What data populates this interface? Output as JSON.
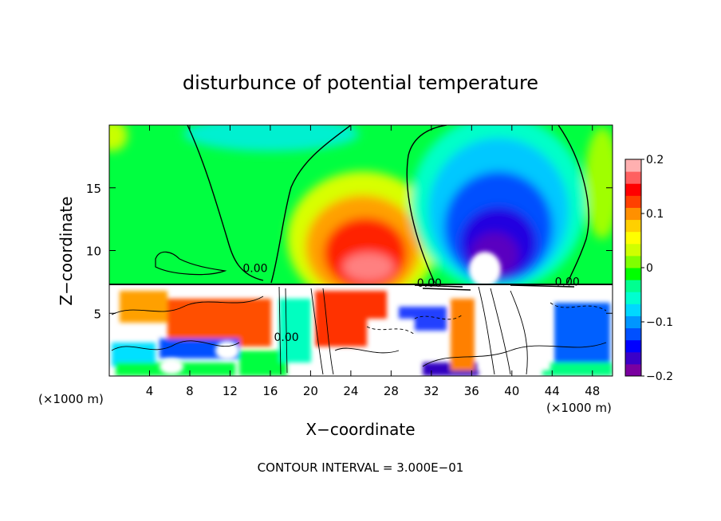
{
  "chart_data": {
    "type": "heatmap",
    "title": "disturbunce of potential temperature",
    "xlabel": "X−coordinate",
    "ylabel": "Z−coordinate",
    "x_unit_left": "(×1000 m)",
    "x_unit_right": "(×1000 m)",
    "x_ticks": [
      4,
      8,
      12,
      16,
      20,
      24,
      28,
      32,
      36,
      40,
      44,
      48
    ],
    "y_ticks": [
      5,
      10,
      15
    ],
    "xlim": [
      0,
      50
    ],
    "ylim": [
      0,
      20
    ],
    "grid": false,
    "colorbar": {
      "min": -0.2,
      "max": 0.2,
      "tick_values": [
        0.2,
        0.1,
        0,
        -0.1,
        -0.2
      ],
      "tick_labels": [
        "0.2",
        "0.1",
        "0",
        "−0.1",
        "−0.2"
      ],
      "colors": [
        "#7a00a0",
        "#3a00c8",
        "#0000ff",
        "#0050ff",
        "#0096ff",
        "#00d8ff",
        "#00ffd0",
        "#00ff90",
        "#00ff00",
        "#80ff00",
        "#d0ff00",
        "#ffff00",
        "#ffd000",
        "#ff9000",
        "#ff4000",
        "#ff0000",
        "#ff6060",
        "#ffb0b0"
      ]
    },
    "contour_labels": [
      {
        "text": "0.00",
        "x": 14.5,
        "z": 8.3
      },
      {
        "text": "0.00",
        "x": 31.8,
        "z": 7.1
      },
      {
        "text": "0.00",
        "x": 45.5,
        "z": 7.2
      },
      {
        "text": "0.00",
        "x": 17.6,
        "z": 2.8
      }
    ],
    "anomalies": [
      {
        "x": 26,
        "z": 10.5,
        "value": 0.2
      },
      {
        "x": 38,
        "z": 11,
        "value": -0.2
      },
      {
        "x": 12,
        "z": 4.5,
        "value": 0.12
      }
    ],
    "footer": "CONTOUR INTERVAL = 3.000E−01"
  },
  "colors": {
    "background": "#00ff40",
    "warm_core": "#ff0000",
    "cold_core": "#3a00c8"
  }
}
